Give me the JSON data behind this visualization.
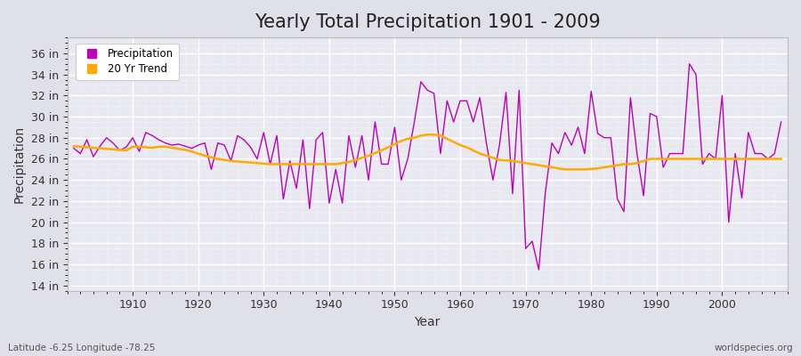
{
  "title": "Yearly Total Precipitation 1901 - 2009",
  "xlabel": "Year",
  "ylabel": "Precipitation",
  "lat_lon_label": "Latitude -6.25 Longitude -78.25",
  "watermark": "worldspecies.org",
  "precip_color": "#bb00bb",
  "trend_color": "#ffaa00",
  "fig_bg_color": "#e0e0e8",
  "plot_bg_color": "#e8e8f0",
  "years": [
    1901,
    1902,
    1903,
    1904,
    1905,
    1906,
    1907,
    1908,
    1909,
    1910,
    1911,
    1912,
    1913,
    1914,
    1915,
    1916,
    1917,
    1918,
    1919,
    1920,
    1921,
    1922,
    1923,
    1924,
    1925,
    1926,
    1927,
    1928,
    1929,
    1930,
    1931,
    1932,
    1933,
    1934,
    1935,
    1936,
    1937,
    1938,
    1939,
    1940,
    1941,
    1942,
    1943,
    1944,
    1945,
    1946,
    1947,
    1948,
    1949,
    1950,
    1951,
    1952,
    1953,
    1954,
    1955,
    1956,
    1957,
    1958,
    1959,
    1960,
    1961,
    1962,
    1963,
    1964,
    1965,
    1966,
    1967,
    1968,
    1969,
    1970,
    1971,
    1972,
    1973,
    1974,
    1975,
    1976,
    1977,
    1978,
    1979,
    1980,
    1981,
    1982,
    1983,
    1984,
    1985,
    1986,
    1987,
    1988,
    1989,
    1990,
    1991,
    1992,
    1993,
    1994,
    1995,
    1996,
    1997,
    1998,
    1999,
    2000,
    2001,
    2002,
    2003,
    2004,
    2005,
    2006,
    2007,
    2008,
    2009
  ],
  "precip": [
    27.0,
    26.5,
    27.8,
    26.2,
    27.2,
    28.0,
    27.5,
    26.8,
    27.1,
    28.0,
    26.7,
    28.5,
    28.2,
    27.8,
    27.5,
    27.3,
    27.4,
    27.2,
    27.0,
    27.3,
    27.5,
    25.0,
    27.5,
    27.3,
    25.8,
    28.2,
    27.8,
    27.1,
    26.0,
    28.5,
    25.5,
    28.2,
    22.2,
    25.8,
    23.2,
    27.8,
    21.3,
    27.8,
    28.5,
    21.8,
    25.0,
    21.8,
    28.2,
    25.2,
    28.2,
    24.0,
    29.5,
    25.5,
    25.5,
    29.0,
    24.0,
    26.0,
    29.5,
    33.3,
    32.5,
    32.2,
    26.5,
    31.5,
    29.5,
    31.5,
    31.5,
    29.5,
    31.8,
    27.5,
    24.0,
    27.3,
    32.3,
    22.7,
    32.5,
    17.5,
    18.2,
    15.5,
    22.8,
    27.5,
    26.5,
    28.5,
    27.3,
    29.0,
    26.5,
    32.4,
    28.4,
    28.0,
    28.0,
    22.2,
    21.0,
    31.8,
    26.5,
    22.5,
    30.3,
    30.0,
    25.2,
    26.5,
    26.5,
    26.5,
    35.0,
    34.0,
    25.5,
    26.5,
    26.0,
    32.0,
    20.0,
    26.5,
    22.3,
    28.5,
    26.5,
    26.5,
    26.0,
    26.5,
    29.5
  ],
  "trend": [
    27.2,
    27.15,
    27.1,
    27.05,
    27.0,
    26.95,
    26.9,
    26.85,
    26.8,
    27.15,
    27.15,
    27.1,
    27.05,
    27.15,
    27.15,
    27.05,
    26.95,
    26.85,
    26.7,
    26.5,
    26.3,
    26.15,
    26.0,
    25.9,
    25.8,
    25.75,
    25.7,
    25.65,
    25.6,
    25.55,
    25.5,
    25.5,
    25.5,
    25.5,
    25.5,
    25.5,
    25.5,
    25.5,
    25.5,
    25.5,
    25.5,
    25.6,
    25.7,
    25.9,
    26.1,
    26.3,
    26.55,
    26.8,
    27.1,
    27.4,
    27.7,
    27.9,
    28.0,
    28.2,
    28.3,
    28.3,
    28.2,
    27.9,
    27.6,
    27.3,
    27.1,
    26.8,
    26.5,
    26.3,
    26.1,
    25.9,
    25.85,
    25.8,
    25.7,
    25.6,
    25.5,
    25.4,
    25.3,
    25.2,
    25.1,
    25.0,
    25.0,
    25.0,
    25.0,
    25.05,
    25.1,
    25.2,
    25.3,
    25.4,
    25.5,
    25.5,
    25.6,
    25.8,
    26.0,
    26.0,
    26.0,
    26.0,
    26.0,
    26.0,
    26.0,
    26.0,
    26.0,
    26.0,
    26.0,
    26.0,
    26.0,
    26.0,
    26.0,
    26.0,
    26.0,
    26.0,
    26.0,
    26.0,
    26.0
  ],
  "ytick_labels": [
    "14 in",
    "16 in",
    "18 in",
    "20 in",
    "22 in",
    "24 in",
    "26 in",
    "28 in",
    "30 in",
    "32 in",
    "34 in",
    "36 in"
  ],
  "ytick_values": [
    14,
    16,
    18,
    20,
    22,
    24,
    26,
    28,
    30,
    32,
    34,
    36
  ],
  "ylim": [
    13.5,
    37.5
  ],
  "xlim": [
    1900,
    2010
  ],
  "xtick_values": [
    1910,
    1920,
    1930,
    1940,
    1950,
    1960,
    1970,
    1980,
    1990,
    2000
  ],
  "legend_items": [
    "Precipitation",
    "20 Yr Trend"
  ],
  "title_fontsize": 15,
  "axis_label_fontsize": 10,
  "tick_fontsize": 9
}
